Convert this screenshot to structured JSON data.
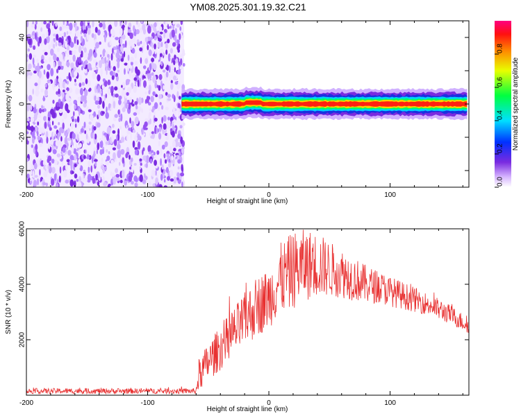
{
  "title": "YM08.2025.301.19.32.C21",
  "colors": {
    "snr_line": "#e83030",
    "noise_purple": "#7a2be0",
    "frame": "#000000"
  },
  "chart_data": [
    {
      "type": "heatmap",
      "name": "spectrogram",
      "xlabel": "Height of straight line (km)",
      "ylabel": "Frequency (Hz)",
      "xlim": [
        -200,
        165
      ],
      "ylim": [
        -50,
        50
      ],
      "xticks": [
        -200,
        -100,
        0,
        100
      ],
      "yticks": [
        -40,
        -20,
        0,
        20,
        40
      ],
      "noise_region_x": [
        -200,
        -70
      ],
      "signal_start_x": -72,
      "signal_frequency": 0,
      "signal_halfwidth_hz": 3,
      "colorbar": {
        "label": "Normalized spectral amplitude",
        "ticks": [
          0.0,
          0.2,
          0.4,
          0.6,
          0.8
        ],
        "range": [
          0,
          1
        ]
      }
    },
    {
      "type": "line",
      "name": "snr",
      "xlabel": "Height of straight line (km)",
      "ylabel": "SNR (10 * v/v)",
      "xlim": [
        -200,
        165
      ],
      "ylim": [
        0,
        6000
      ],
      "xticks": [
        -200,
        -100,
        0,
        100
      ],
      "yticks": [
        2000,
        4000,
        6000
      ],
      "envelope": {
        "x": [
          -200,
          -60,
          -58,
          -50,
          -40,
          -30,
          -20,
          -10,
          0,
          10,
          20,
          30,
          40,
          50,
          60,
          70,
          80,
          90,
          100,
          110,
          120,
          130,
          140,
          150,
          165
        ],
        "mean": [
          150,
          150,
          700,
          1200,
          1700,
          2200,
          2700,
          3200,
          3500,
          4200,
          4500,
          4700,
          4700,
          4550,
          4400,
          4200,
          4000,
          3900,
          3750,
          3600,
          3450,
          3300,
          3100,
          2900,
          2500
        ],
        "spread": [
          100,
          100,
          600,
          700,
          800,
          900,
          1000,
          1100,
          1100,
          1300,
          1400,
          1300,
          1200,
          1000,
          900,
          800,
          700,
          600,
          550,
          500,
          450,
          400,
          400,
          350,
          300
        ]
      }
    }
  ]
}
